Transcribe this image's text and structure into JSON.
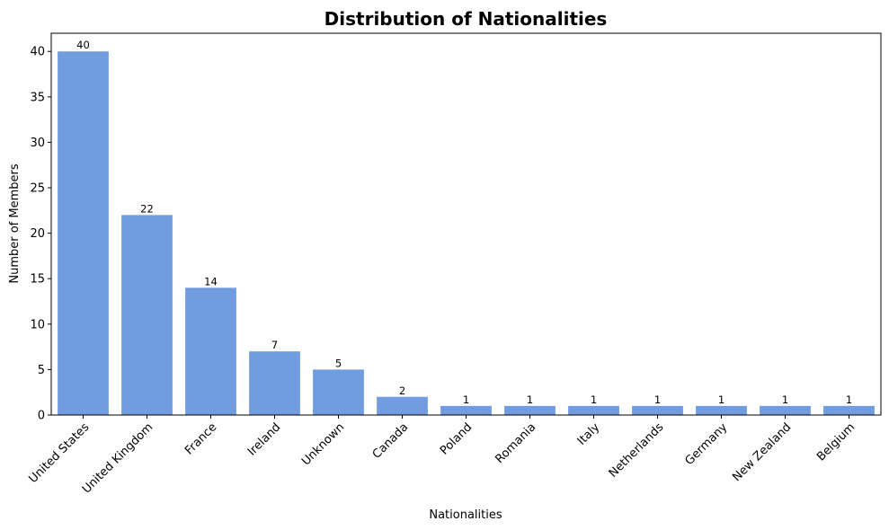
{
  "chart_data": {
    "type": "bar",
    "title": "Distribution of Nationalities",
    "xlabel": "Nationalities",
    "ylabel": "Number of Members",
    "categories": [
      "United States",
      "United Kingdom",
      "France",
      "Ireland",
      "Unknown",
      "Canada",
      "Poland",
      "Romania",
      "Italy",
      "Netherlands",
      "Germany",
      "New Zealand",
      "Belgium"
    ],
    "values": [
      40,
      22,
      14,
      7,
      5,
      2,
      1,
      1,
      1,
      1,
      1,
      1,
      1
    ],
    "ylim": [
      0,
      42
    ],
    "yticks": [
      0,
      5,
      10,
      15,
      20,
      25,
      30,
      35,
      40
    ],
    "bar_color": "#729ce0",
    "grid": false,
    "xtick_rotation": 45
  }
}
